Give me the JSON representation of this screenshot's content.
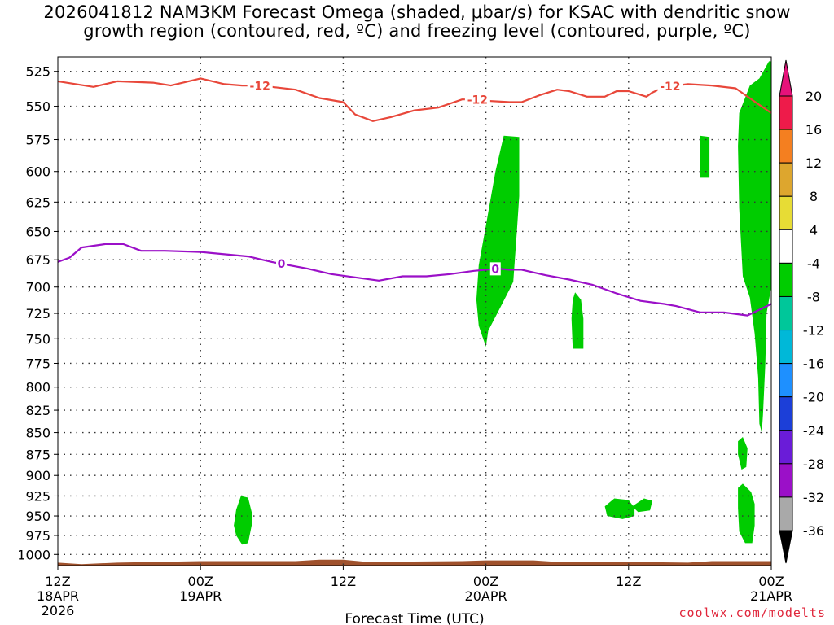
{
  "title": "2026041812 NAM3KM Forecast Omega (shaded, μbar/s) for KSAC with dendritic snow\ngrowth region (contoured, red, ºC) and freezing level (contoured, purple, ºC)",
  "watermark": "coolwx.com/modelts",
  "chart_data": {
    "type": "time-height cross section",
    "title": "2026041812 NAM3KM Forecast Omega (shaded, μbar/s) for KSAC with dendritic snow growth region (contoured, red, ºC) and freezing level (contoured, purple, ºC)",
    "xlabel": "Forecast Time (UTC)",
    "ylabel": "",
    "x_unit": "hours after 2026-04-18 12Z",
    "xlim": [
      0,
      60
    ],
    "ylim": [
      1015,
      515
    ],
    "y_scale": "log-pressure (inverted)",
    "grid": true,
    "x_ticks": [
      {
        "hour": 0,
        "label": "12Z",
        "date": "18APR",
        "year": "2026"
      },
      {
        "hour": 12,
        "label": "00Z",
        "date": "19APR",
        "year": ""
      },
      {
        "hour": 24,
        "label": "12Z",
        "date": "",
        "year": ""
      },
      {
        "hour": 36,
        "label": "00Z",
        "date": "20APR",
        "year": ""
      },
      {
        "hour": 48,
        "label": "12Z",
        "date": "",
        "year": ""
      },
      {
        "hour": 60,
        "label": "00Z",
        "date": "21APR",
        "year": ""
      }
    ],
    "y_ticks": [
      525,
      550,
      575,
      600,
      625,
      650,
      675,
      700,
      725,
      750,
      775,
      800,
      825,
      850,
      875,
      900,
      925,
      950,
      975,
      1000
    ],
    "dgz_minus12_line": {
      "name": "-12",
      "color": "#e8473a",
      "label": "-12",
      "label_hours": [
        17,
        35.3,
        51.5
      ],
      "points": [
        [
          0,
          532
        ],
        [
          3,
          536
        ],
        [
          5,
          532
        ],
        [
          8,
          533
        ],
        [
          9.5,
          535
        ],
        [
          11,
          532
        ],
        [
          12,
          530
        ],
        [
          14,
          534
        ],
        [
          15.5,
          535
        ],
        [
          16.5,
          535
        ],
        [
          18,
          536
        ],
        [
          20,
          538
        ],
        [
          22,
          544
        ],
        [
          24,
          547
        ],
        [
          25,
          556
        ],
        [
          26.5,
          561
        ],
        [
          28,
          558
        ],
        [
          30,
          553
        ],
        [
          32,
          551
        ],
        [
          34,
          545
        ],
        [
          35,
          545
        ],
        [
          36,
          546
        ],
        [
          38,
          547
        ],
        [
          39,
          547
        ],
        [
          40.5,
          542
        ],
        [
          42,
          538
        ],
        [
          43,
          539
        ],
        [
          44.5,
          543
        ],
        [
          46,
          543
        ],
        [
          47,
          539
        ],
        [
          48,
          539
        ],
        [
          49.5,
          543
        ],
        [
          50,
          540
        ],
        [
          51,
          536
        ],
        [
          52,
          535
        ],
        [
          53,
          534
        ],
        [
          55,
          535
        ],
        [
          57,
          537
        ],
        [
          59,
          549
        ],
        [
          60,
          555
        ]
      ]
    },
    "freezing_level_line": {
      "name": "0",
      "color": "#9b10c8",
      "label": "0",
      "label_hours": [
        18.8,
        36.8
      ],
      "points": [
        [
          0,
          677
        ],
        [
          1,
          673
        ],
        [
          2,
          664
        ],
        [
          4,
          661
        ],
        [
          5.5,
          661
        ],
        [
          7,
          667
        ],
        [
          9,
          667
        ],
        [
          12,
          668
        ],
        [
          14,
          670
        ],
        [
          16,
          672
        ],
        [
          18,
          677
        ],
        [
          19,
          679
        ],
        [
          21,
          683
        ],
        [
          23,
          688
        ],
        [
          25,
          691
        ],
        [
          27,
          694
        ],
        [
          29,
          690
        ],
        [
          31,
          690
        ],
        [
          33,
          688
        ],
        [
          35,
          685
        ],
        [
          37,
          683
        ],
        [
          38,
          684
        ],
        [
          39,
          684
        ],
        [
          41,
          689
        ],
        [
          43,
          693
        ],
        [
          45,
          698
        ],
        [
          47,
          706
        ],
        [
          49,
          713
        ],
        [
          51,
          716
        ],
        [
          52,
          718
        ],
        [
          54,
          724
        ],
        [
          56,
          724
        ],
        [
          58,
          727
        ],
        [
          60,
          716
        ]
      ]
    },
    "omega_shading": {
      "description": "green fill = omega between -4 and -8 μbar/s",
      "color": "#00cc00",
      "regions": [
        [
          [
            15.4,
            925
          ],
          [
            16,
            927
          ],
          [
            16.3,
            945
          ],
          [
            16.3,
            962
          ],
          [
            16,
            985
          ],
          [
            15.5,
            987
          ],
          [
            15,
            975
          ],
          [
            14.8,
            962
          ],
          [
            15,
            942
          ]
        ],
        [
          [
            37.5,
            572
          ],
          [
            38.8,
            573
          ],
          [
            38.8,
            620
          ],
          [
            38.6,
            650
          ],
          [
            38.3,
            695
          ],
          [
            38,
            702
          ],
          [
            37,
            724
          ],
          [
            36.2,
            742
          ],
          [
            36,
            758
          ],
          [
            35.4,
            737
          ],
          [
            35.2,
            712
          ],
          [
            35.4,
            680
          ],
          [
            36,
            645
          ],
          [
            36.8,
            600
          ]
        ],
        [
          [
            43.5,
            705
          ],
          [
            44,
            712
          ],
          [
            44.2,
            730
          ],
          [
            44.2,
            760
          ],
          [
            43.3,
            760
          ],
          [
            43.2,
            730
          ],
          [
            43.3,
            712
          ]
        ],
        [
          [
            46.8,
            928
          ],
          [
            48,
            930
          ],
          [
            48.5,
            940
          ],
          [
            48.5,
            950
          ],
          [
            47.5,
            954
          ],
          [
            46.2,
            950
          ],
          [
            46,
            938
          ]
        ],
        [
          [
            49.3,
            928
          ],
          [
            50,
            931
          ],
          [
            49.8,
            943
          ],
          [
            48.8,
            945
          ],
          [
            48.3,
            938
          ]
        ],
        [
          [
            54,
            572
          ],
          [
            54.8,
            573
          ],
          [
            54.8,
            605
          ],
          [
            54,
            605
          ]
        ],
        [
          [
            59.8,
            518
          ],
          [
            60,
            518
          ],
          [
            60,
            640
          ],
          [
            60,
            700
          ],
          [
            59.6,
            725
          ],
          [
            59.5,
            775
          ],
          [
            59.3,
            830
          ],
          [
            59.2,
            850
          ],
          [
            59,
            840
          ],
          [
            58.9,
            790
          ],
          [
            58.6,
            745
          ],
          [
            58.2,
            710
          ],
          [
            57.6,
            690
          ],
          [
            57.3,
            630
          ],
          [
            57.2,
            580
          ],
          [
            57.3,
            555
          ],
          [
            58.2,
            535
          ],
          [
            59,
            530
          ]
        ],
        [
          [
            57.6,
            855
          ],
          [
            58,
            868
          ],
          [
            57.9,
            890
          ],
          [
            57.5,
            893
          ],
          [
            57.2,
            875
          ],
          [
            57.2,
            860
          ]
        ],
        [
          [
            57.6,
            910
          ],
          [
            58.3,
            920
          ],
          [
            58.6,
            935
          ],
          [
            58.6,
            962
          ],
          [
            58.4,
            985
          ],
          [
            57.8,
            985
          ],
          [
            57.3,
            970
          ],
          [
            57.2,
            940
          ],
          [
            57.2,
            915
          ]
        ]
      ]
    },
    "terrain": {
      "color": "#a0522d",
      "points": [
        [
          0,
          1011
        ],
        [
          2,
          1013
        ],
        [
          5,
          1011
        ],
        [
          12,
          1009
        ],
        [
          20,
          1009
        ],
        [
          22,
          1007
        ],
        [
          24,
          1007
        ],
        [
          26,
          1010
        ],
        [
          34,
          1009
        ],
        [
          36,
          1008
        ],
        [
          40,
          1008
        ],
        [
          42,
          1010
        ],
        [
          48,
          1010
        ],
        [
          53,
          1011
        ],
        [
          55,
          1009
        ],
        [
          60,
          1009
        ]
      ],
      "bottom_pressure": 1015
    },
    "colorbar": {
      "labels": [
        "20",
        "16",
        "12",
        "8",
        "4",
        "-4",
        "-8",
        "-12",
        "-16",
        "-20",
        "-24",
        "-28",
        "-32",
        "-36"
      ],
      "colors": [
        "#ee1b4a",
        "#f47f20",
        "#dda62e",
        "#e7dc35",
        "#ffffff",
        "#00cc00",
        "#00c79a",
        "#00b8d8",
        "#1e90ff",
        "#1c3fd8",
        "#6a1cd8",
        "#9b10c8",
        "#a9a9a9"
      ],
      "top_triangle": "#e6127a",
      "bottom_triangle": "#000000"
    }
  }
}
